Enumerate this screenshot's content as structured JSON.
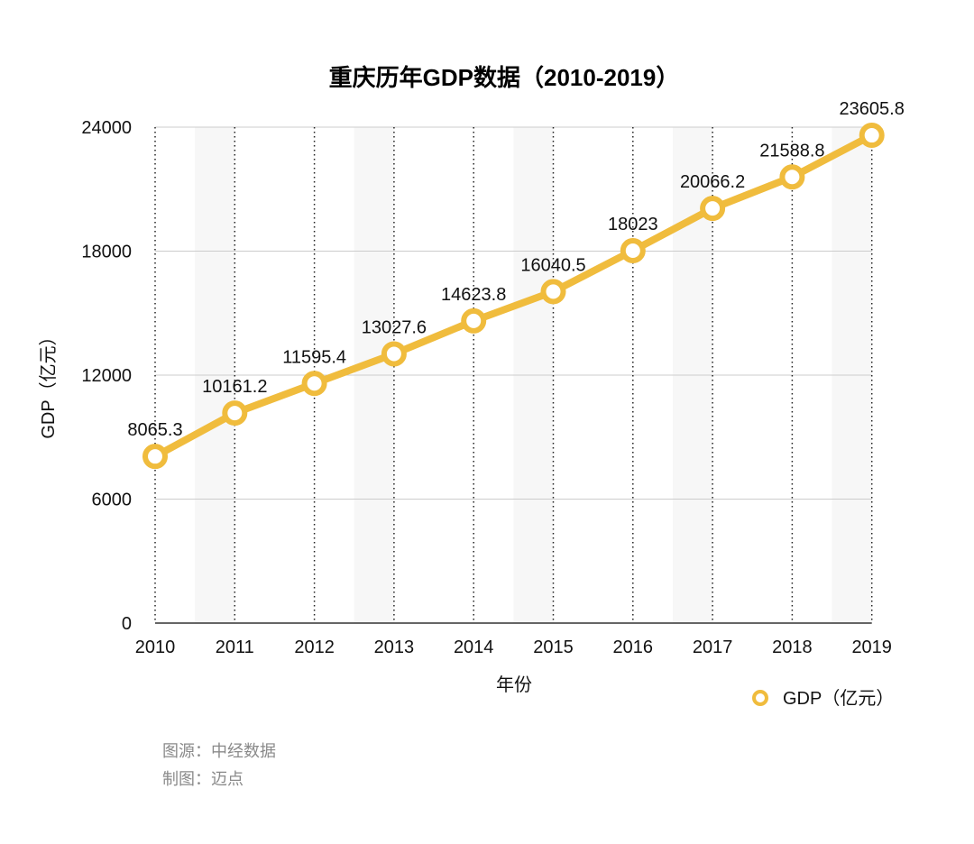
{
  "chart_data": {
    "type": "line",
    "title": "重庆历年GDP数据（2010-2019）",
    "xlabel": "年份",
    "ylabel": "GDP（亿元）",
    "categories": [
      "2010",
      "2011",
      "2012",
      "2013",
      "2014",
      "2015",
      "2016",
      "2017",
      "2018",
      "2019"
    ],
    "series": [
      {
        "name": "GDP（亿元）",
        "values": [
          8065.3,
          10161.2,
          11595.4,
          13027.6,
          14623.8,
          16040.5,
          18023,
          20066.2,
          21588.8,
          23605.8
        ],
        "labels": [
          "8065.3",
          "10161.2",
          "11595.4",
          "13027.6",
          "14623.8",
          "16040.5",
          "18023",
          "20066.2",
          "21588.8",
          "23605.8"
        ]
      }
    ],
    "ylim": [
      0,
      24000
    ],
    "yticks": [
      "0",
      "6000",
      "12000",
      "18000",
      "24000"
    ],
    "grid": {
      "horizontal": true,
      "vertical_dotted": true
    },
    "legend_position": "bottom-right",
    "colors": {
      "line": "#f0bc3d",
      "grid": "#cccccc",
      "band": "#f7f7f7"
    }
  },
  "footer": {
    "source": "图源：中经数据",
    "maker": "制图：迈点"
  }
}
